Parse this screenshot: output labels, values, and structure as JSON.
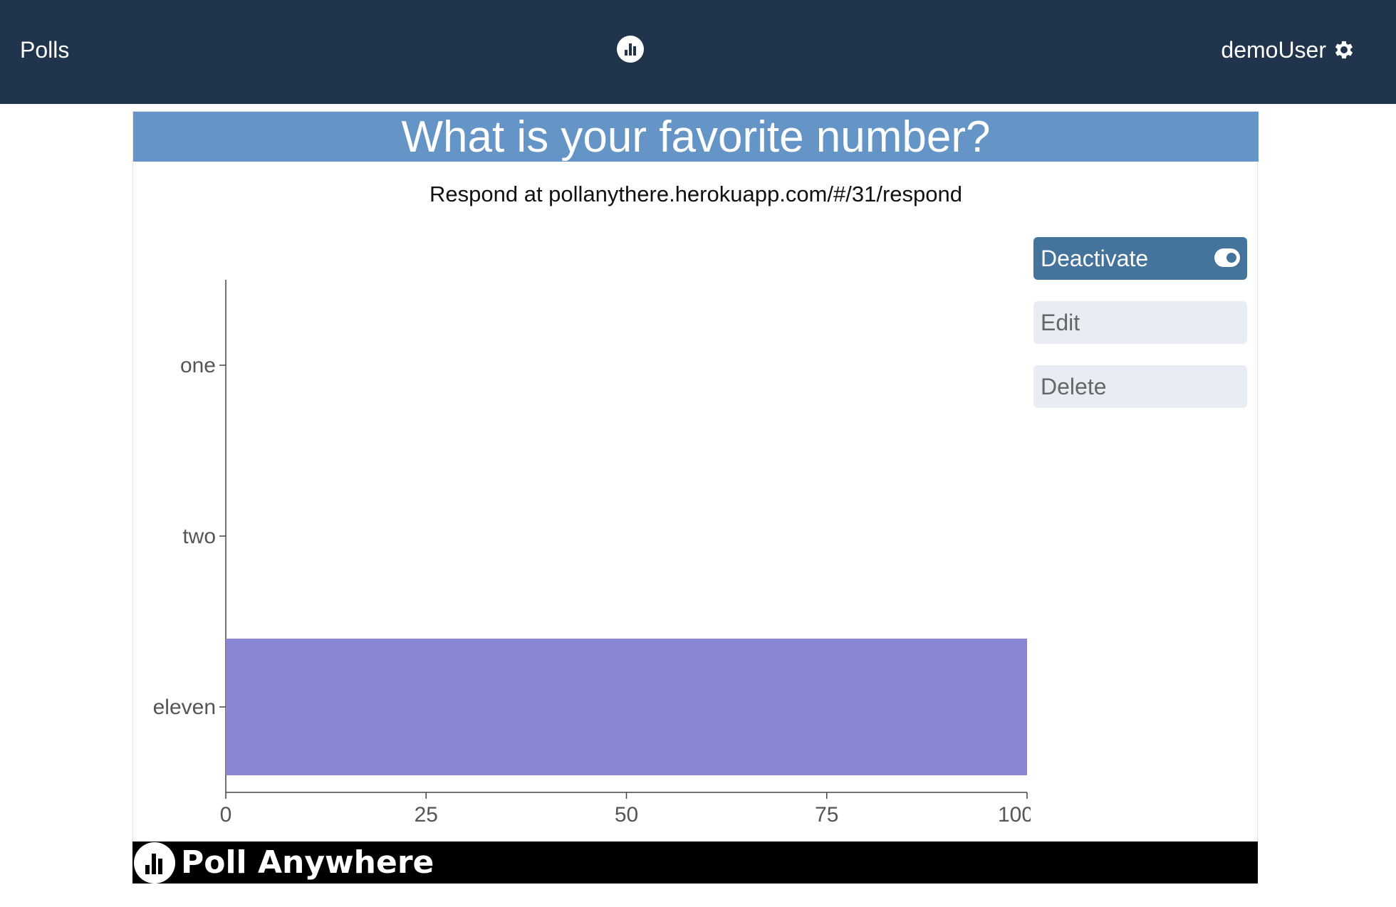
{
  "navbar": {
    "polls_label": "Polls",
    "logo_icon": "poll-anywhere-logo-icon",
    "username": "demoUser",
    "settings_icon": "gear-icon"
  },
  "poll": {
    "title": "What is your favorite number?",
    "respond_text": "Respond at pollanythere.herokuapp.com/#/31/respond"
  },
  "actions": {
    "deactivate_label": "Deactivate",
    "toggle_icon": "toggle-on-icon",
    "edit_label": "Edit",
    "delete_label": "Delete"
  },
  "chart_data": {
    "type": "bar",
    "orientation": "horizontal",
    "categories": [
      "one",
      "two",
      "eleven"
    ],
    "values": [
      0,
      0,
      100
    ],
    "xticks": [
      "0",
      "25",
      "50",
      "75",
      "100"
    ],
    "xlim": [
      0,
      100
    ],
    "bar_color": "#8a86d6"
  },
  "footer": {
    "brand_text": "Poll Anywhere",
    "logo_icon": "poll-anywhere-logo-icon"
  },
  "colors": {
    "navbar": "#20344b",
    "title_bar": "#6495c6",
    "deactivate_button": "#44749c",
    "secondary_button": "#e8ecf3",
    "footer": "#000000"
  }
}
